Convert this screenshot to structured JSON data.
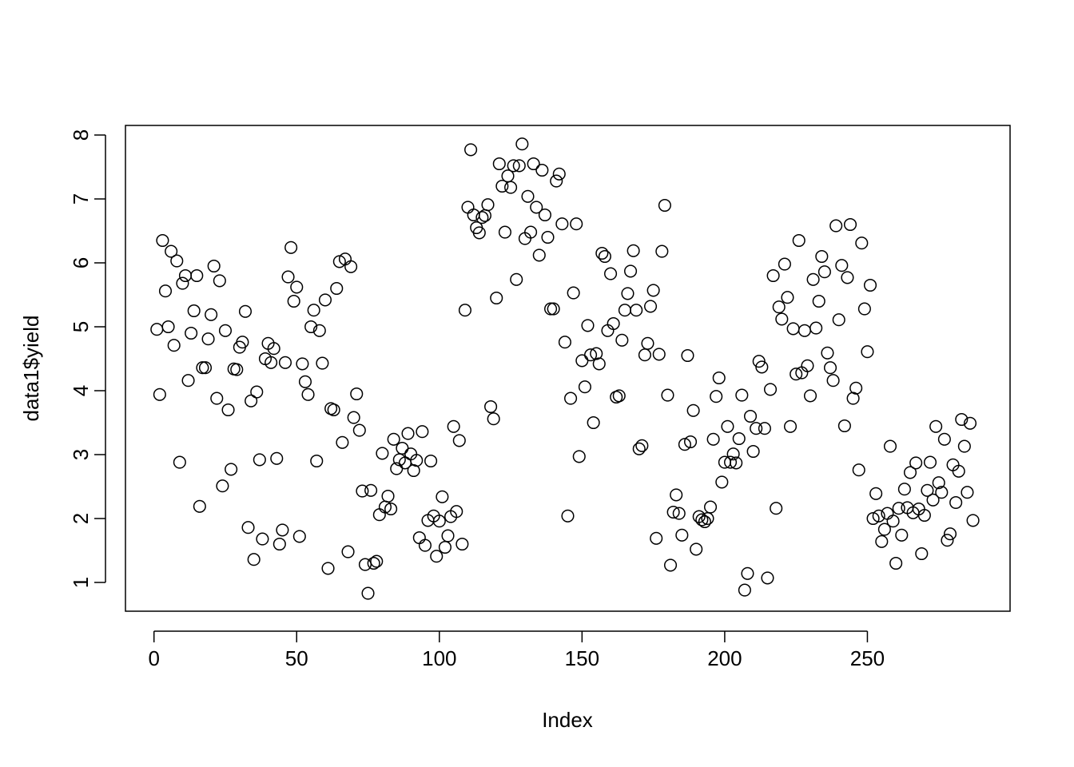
{
  "chart_data": {
    "type": "scatter",
    "title": "",
    "xlabel": "Index",
    "ylabel": "data1$yield",
    "xlim": [
      -10,
      300
    ],
    "ylim": [
      0.55,
      8.15
    ],
    "xticks": [
      0,
      50,
      100,
      150,
      200,
      250
    ],
    "yticks": [
      1,
      2,
      3,
      4,
      5,
      6,
      7,
      8
    ],
    "grid": false,
    "series": [
      {
        "values": [
          4.96,
          3.94,
          6.35,
          5.56,
          5.0,
          6.18,
          4.71,
          6.03,
          2.88,
          5.68,
          5.8,
          4.16,
          4.9,
          5.25,
          5.8,
          2.19,
          4.36,
          4.36,
          4.81,
          5.19,
          5.95,
          3.88,
          5.72,
          2.51,
          4.94,
          3.7,
          2.77,
          4.34,
          4.33,
          4.68,
          4.76,
          5.24,
          1.86,
          3.84,
          1.36,
          3.98,
          2.92,
          1.68,
          4.5,
          4.74,
          4.44,
          4.66,
          2.94,
          1.6,
          1.82,
          4.44,
          5.78,
          6.24,
          5.4,
          5.62,
          1.72,
          4.42,
          4.14,
          3.94,
          5.0,
          5.26,
          2.9,
          4.94,
          4.43,
          5.42,
          1.22,
          3.72,
          3.7,
          5.6,
          6.02,
          3.19,
          6.06,
          1.48,
          5.94,
          3.58,
          3.95,
          3.38,
          2.43,
          1.28,
          0.83,
          2.44,
          1.3,
          1.33,
          2.06,
          3.02,
          2.18,
          2.35,
          2.15,
          3.24,
          2.78,
          2.92,
          3.1,
          2.87,
          3.33,
          3.01,
          2.75,
          2.91,
          1.7,
          3.36,
          1.58,
          1.97,
          2.9,
          2.04,
          1.41,
          1.96,
          2.34,
          1.55,
          1.73,
          2.03,
          3.44,
          2.11,
          3.22,
          1.6,
          5.26,
          6.87,
          7.77,
          6.75,
          6.55,
          6.47,
          6.71,
          6.74,
          6.91,
          3.75,
          3.56,
          5.45,
          7.55,
          7.2,
          6.48,
          7.36,
          7.18,
          7.52,
          5.74,
          7.52,
          7.86,
          6.38,
          7.04,
          6.48,
          7.55,
          6.87,
          6.12,
          7.45,
          6.75,
          6.4,
          5.28,
          5.28,
          7.28,
          7.39,
          6.61,
          4.76,
          2.04,
          3.88,
          5.53,
          6.61,
          2.97,
          4.47,
          4.06,
          5.02,
          4.56,
          3.5,
          4.58,
          4.42,
          6.15,
          6.1,
          4.94,
          5.83,
          5.05,
          3.9,
          3.92,
          4.79,
          5.26,
          5.52,
          5.87,
          6.19,
          5.26,
          3.09,
          3.14,
          4.56,
          4.74,
          5.32,
          5.57,
          1.69,
          4.57,
          6.18,
          6.9,
          3.93,
          1.27,
          2.1,
          2.37,
          2.08,
          1.74,
          3.16,
          4.55,
          3.2,
          3.69,
          1.52,
          2.03,
          1.98,
          1.95,
          2.0,
          2.18,
          3.24,
          3.91,
          4.2,
          2.57,
          2.88,
          3.44,
          2.88,
          3.01,
          2.87,
          3.25,
          3.93,
          0.88,
          1.14,
          3.6,
          3.05,
          3.41,
          4.46,
          4.37,
          3.41,
          1.07,
          4.02,
          5.8,
          2.16,
          5.31,
          5.12,
          5.98,
          5.46,
          3.44,
          4.97,
          4.26,
          6.35,
          4.28,
          4.94,
          4.39,
          3.92,
          5.74,
          4.98,
          5.4,
          6.1,
          5.86,
          4.59,
          4.36,
          4.16,
          6.58,
          5.11,
          5.96,
          3.45,
          5.77,
          6.6,
          3.88,
          4.04,
          2.76,
          6.31,
          5.28,
          4.61,
          5.65,
          2.0,
          2.39,
          2.04,
          1.64,
          1.83,
          2.08,
          3.13,
          1.96,
          1.3,
          2.16,
          1.74,
          2.46,
          2.17,
          2.72,
          2.09,
          2.87,
          2.15,
          1.45,
          2.05,
          2.44,
          2.88,
          2.29,
          3.44,
          2.56,
          2.41,
          3.24,
          1.66,
          1.76,
          2.84,
          2.25,
          2.74,
          3.55,
          3.13,
          2.41,
          3.49,
          1.97
        ]
      }
    ]
  }
}
